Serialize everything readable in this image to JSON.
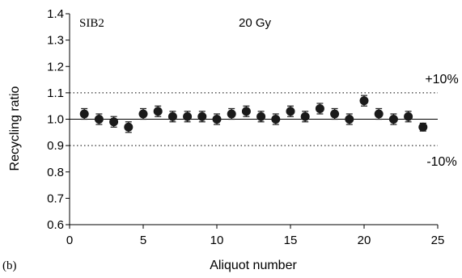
{
  "chart_data": {
    "type": "scatter",
    "panel_label": "(b)",
    "sample_label": "SIB2",
    "dose_label": "20 Gy",
    "xlabel": "Aliquot number",
    "ylabel": "Recycling ratio",
    "xlim": [
      0,
      25
    ],
    "ylim": [
      0.6,
      1.4
    ],
    "x_ticks": [
      0,
      5,
      10,
      15,
      20,
      25
    ],
    "y_ticks": [
      "0.6",
      "0.7",
      "0.8",
      "0.9",
      "1.0",
      "1.1",
      "1.2",
      "1.3",
      "1.4"
    ],
    "reference_line": 1.0,
    "bounds": [
      {
        "value": 1.1,
        "label": "+10%"
      },
      {
        "value": 0.9,
        "label": "-10%"
      }
    ],
    "x": [
      1,
      2,
      3,
      4,
      5,
      6,
      7,
      8,
      9,
      10,
      11,
      12,
      13,
      14,
      15,
      16,
      17,
      18,
      19,
      20,
      21,
      22,
      23,
      24
    ],
    "y": [
      1.02,
      1.0,
      0.99,
      0.97,
      1.02,
      1.03,
      1.01,
      1.01,
      1.01,
      1.0,
      1.02,
      1.03,
      1.01,
      1.0,
      1.03,
      1.01,
      1.04,
      1.02,
      1.0,
      1.07,
      1.02,
      1.0,
      1.01,
      0.97
    ],
    "yerr": [
      0.02,
      0.02,
      0.02,
      0.02,
      0.02,
      0.02,
      0.02,
      0.02,
      0.02,
      0.02,
      0.02,
      0.02,
      0.02,
      0.02,
      0.02,
      0.02,
      0.02,
      0.02,
      0.02,
      0.02,
      0.02,
      0.02,
      0.02,
      0.015
    ],
    "grid": false,
    "colors": {
      "marker": "#1a1a1a",
      "axis": "#000000"
    }
  }
}
